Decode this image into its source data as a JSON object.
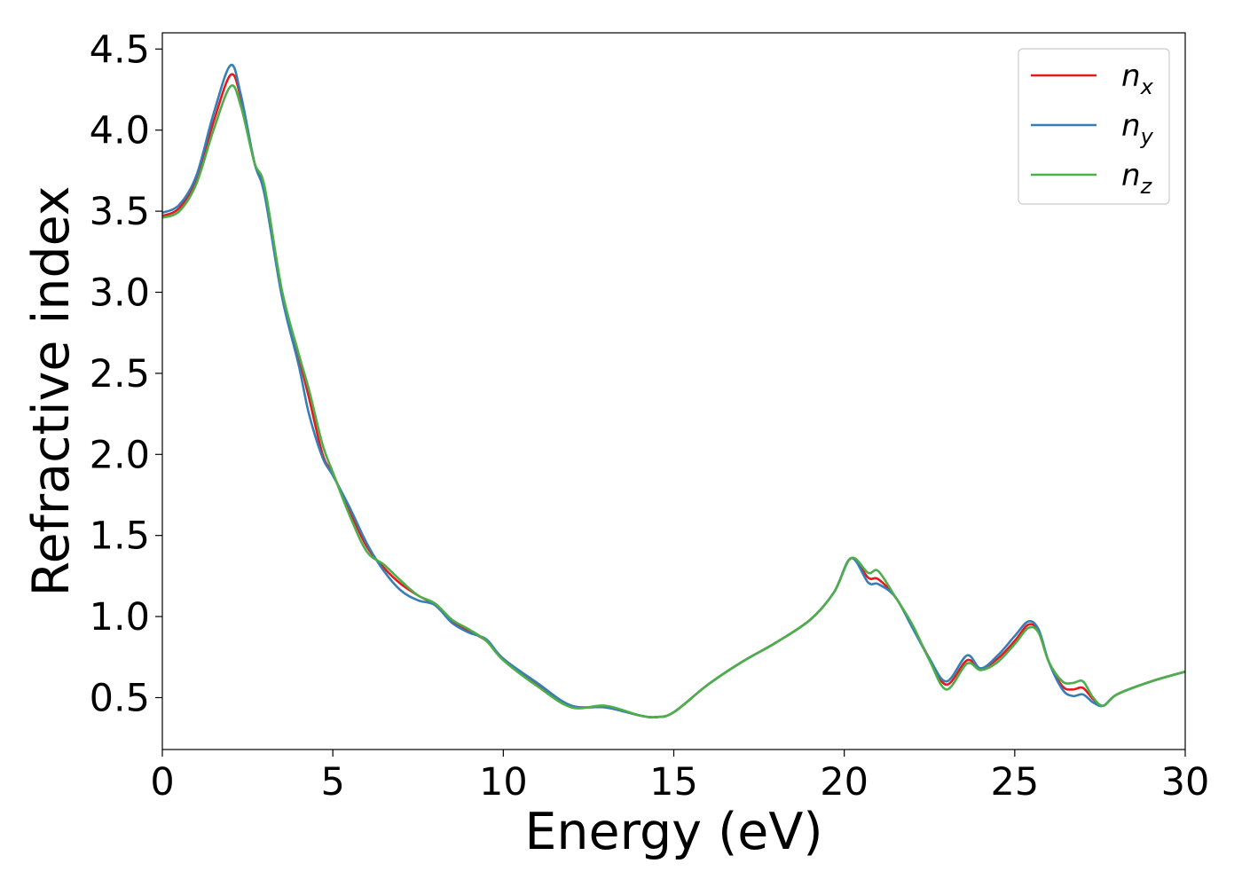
{
  "chart_data": {
    "type": "line",
    "title": "",
    "xlabel": "Energy (eV)",
    "ylabel": "Refractive index",
    "xlim": [
      0,
      30
    ],
    "ylim": [
      0.18,
      4.6
    ],
    "xticks": [
      0,
      5,
      10,
      15,
      20,
      25,
      30
    ],
    "xtick_labels": [
      "0",
      "5",
      "10",
      "15",
      "20",
      "25",
      "30"
    ],
    "yticks": [
      0.5,
      1.0,
      1.5,
      2.0,
      2.5,
      3.0,
      3.5,
      4.0,
      4.5
    ],
    "ytick_labels": [
      "0.5",
      "1.0",
      "1.5",
      "2.0",
      "2.5",
      "3.0",
      "3.5",
      "4.0",
      "4.5"
    ],
    "grid": false,
    "legend_position": "top-right",
    "series": [
      {
        "name": "n_x",
        "label_main": "n",
        "label_sub": "x",
        "color": "#e41a1c",
        "x": [
          0,
          0.5,
          1.0,
          1.5,
          2.0,
          2.3,
          2.7,
          3.0,
          3.5,
          4.0,
          4.3,
          4.7,
          5.0,
          5.5,
          6.0,
          6.5,
          7.0,
          7.5,
          8.0,
          8.5,
          9.0,
          9.5,
          10.0,
          11.0,
          12.0,
          13.0,
          14.0,
          14.5,
          15.0,
          16.0,
          17.0,
          18.0,
          19.0,
          19.7,
          20.2,
          20.7,
          21.0,
          21.5,
          22.0,
          22.5,
          23.0,
          23.6,
          24.0,
          24.5,
          25.0,
          25.4,
          25.7,
          26.0,
          26.4,
          26.7,
          27.0,
          27.3,
          27.6,
          28.0,
          29.0,
          30.0
        ],
        "y": [
          3.47,
          3.52,
          3.7,
          4.05,
          4.34,
          4.2,
          3.8,
          3.62,
          3.0,
          2.6,
          2.35,
          2.0,
          1.88,
          1.65,
          1.43,
          1.3,
          1.2,
          1.13,
          1.07,
          0.97,
          0.91,
          0.85,
          0.74,
          0.58,
          0.45,
          0.44,
          0.39,
          0.38,
          0.41,
          0.58,
          0.72,
          0.84,
          0.98,
          1.15,
          1.36,
          1.24,
          1.23,
          1.12,
          0.94,
          0.74,
          0.58,
          0.73,
          0.68,
          0.74,
          0.85,
          0.95,
          0.91,
          0.72,
          0.57,
          0.55,
          0.56,
          0.49,
          0.45,
          0.52,
          0.6,
          0.66
        ]
      },
      {
        "name": "n_y",
        "label_main": "n",
        "label_sub": "y",
        "color": "#377eb8",
        "x": [
          0,
          0.5,
          1.0,
          1.5,
          2.0,
          2.3,
          2.7,
          3.0,
          3.5,
          4.0,
          4.3,
          4.7,
          5.0,
          5.5,
          6.0,
          6.5,
          7.0,
          7.5,
          8.0,
          8.5,
          9.0,
          9.5,
          10.0,
          11.0,
          12.0,
          13.0,
          14.0,
          14.5,
          15.0,
          16.0,
          17.0,
          18.0,
          19.0,
          19.7,
          20.2,
          20.7,
          21.0,
          21.5,
          22.0,
          22.5,
          23.0,
          23.6,
          24.0,
          24.5,
          25.0,
          25.4,
          25.7,
          26.0,
          26.4,
          26.7,
          27.0,
          27.3,
          27.6,
          28.0,
          29.0,
          30.0
        ],
        "y": [
          3.49,
          3.54,
          3.72,
          4.1,
          4.4,
          4.22,
          3.8,
          3.6,
          2.98,
          2.55,
          2.25,
          1.98,
          1.87,
          1.67,
          1.45,
          1.28,
          1.16,
          1.1,
          1.07,
          0.96,
          0.9,
          0.86,
          0.74,
          0.59,
          0.45,
          0.44,
          0.39,
          0.38,
          0.41,
          0.58,
          0.72,
          0.84,
          0.98,
          1.15,
          1.36,
          1.21,
          1.2,
          1.12,
          0.93,
          0.74,
          0.6,
          0.76,
          0.68,
          0.76,
          0.88,
          0.97,
          0.92,
          0.72,
          0.55,
          0.51,
          0.52,
          0.47,
          0.45,
          0.52,
          0.6,
          0.66
        ]
      },
      {
        "name": "n_z",
        "label_main": "n",
        "label_sub": "z",
        "color": "#4daf4a",
        "x": [
          0,
          0.5,
          1.0,
          1.5,
          2.0,
          2.3,
          2.7,
          3.0,
          3.5,
          4.0,
          4.3,
          4.7,
          5.0,
          5.5,
          6.0,
          6.5,
          7.0,
          7.5,
          8.0,
          8.5,
          9.0,
          9.5,
          10.0,
          11.0,
          12.0,
          13.0,
          14.0,
          14.5,
          15.0,
          16.0,
          17.0,
          18.0,
          19.0,
          19.7,
          20.2,
          20.7,
          21.0,
          21.5,
          22.0,
          22.5,
          23.0,
          23.6,
          24.0,
          24.5,
          25.0,
          25.4,
          25.7,
          26.0,
          26.4,
          26.7,
          27.0,
          27.3,
          27.6,
          28.0,
          29.0,
          30.0
        ],
        "y": [
          3.46,
          3.5,
          3.67,
          4.0,
          4.27,
          4.15,
          3.8,
          3.65,
          3.02,
          2.62,
          2.4,
          2.06,
          1.89,
          1.62,
          1.4,
          1.32,
          1.22,
          1.13,
          1.08,
          0.98,
          0.92,
          0.85,
          0.73,
          0.57,
          0.44,
          0.45,
          0.39,
          0.38,
          0.41,
          0.58,
          0.72,
          0.84,
          0.98,
          1.15,
          1.36,
          1.27,
          1.28,
          1.12,
          0.95,
          0.73,
          0.55,
          0.71,
          0.67,
          0.72,
          0.83,
          0.93,
          0.9,
          0.72,
          0.6,
          0.59,
          0.6,
          0.5,
          0.45,
          0.52,
          0.6,
          0.66
        ]
      }
    ]
  }
}
